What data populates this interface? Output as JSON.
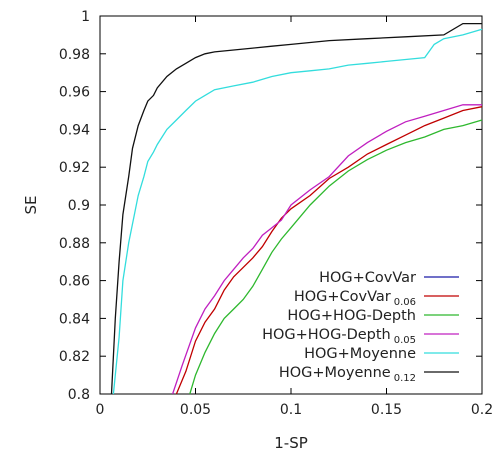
{
  "chart_data": {
    "type": "line",
    "title": "",
    "xlabel": "1-SP",
    "ylabel": "SE",
    "xlim": [
      0,
      0.2
    ],
    "ylim": [
      0.8,
      1.0
    ],
    "grid": false,
    "legend_position": "bottom-right",
    "x_ticks": [
      "0",
      "0.05",
      "0.1",
      "0.15",
      "0.2"
    ],
    "y_ticks": [
      "0.8",
      "0.82",
      "0.84",
      "0.86",
      "0.88",
      "0.9",
      "0.92",
      "0.94",
      "0.96",
      "0.98",
      "1"
    ],
    "series": [
      {
        "name": "HOG+CovVar",
        "subscript": "",
        "color": "#1a1aa8",
        "x": [],
        "y": []
      },
      {
        "name": "HOG+CovVar",
        "subscript": "0.06",
        "color": "#c00000",
        "x": [
          0.04,
          0.045,
          0.05,
          0.055,
          0.06,
          0.065,
          0.07,
          0.075,
          0.08,
          0.085,
          0.09,
          0.095,
          0.1,
          0.11,
          0.12,
          0.13,
          0.14,
          0.15,
          0.16,
          0.17,
          0.18,
          0.19,
          0.2
        ],
        "y": [
          0.8,
          0.812,
          0.828,
          0.838,
          0.845,
          0.855,
          0.862,
          0.867,
          0.872,
          0.878,
          0.886,
          0.893,
          0.898,
          0.905,
          0.914,
          0.92,
          0.927,
          0.932,
          0.937,
          0.942,
          0.946,
          0.95,
          0.952
        ]
      },
      {
        "name": "HOG+HOG-Depth",
        "subscript": "",
        "color": "#2eb82e",
        "x": [
          0.047,
          0.05,
          0.055,
          0.06,
          0.065,
          0.07,
          0.075,
          0.08,
          0.085,
          0.09,
          0.095,
          0.1,
          0.11,
          0.12,
          0.13,
          0.14,
          0.15,
          0.16,
          0.17,
          0.18,
          0.19,
          0.2
        ],
        "y": [
          0.8,
          0.81,
          0.822,
          0.832,
          0.84,
          0.845,
          0.85,
          0.857,
          0.866,
          0.875,
          0.882,
          0.888,
          0.9,
          0.91,
          0.918,
          0.924,
          0.929,
          0.933,
          0.936,
          0.94,
          0.942,
          0.945
        ]
      },
      {
        "name": "HOG+HOG-Depth",
        "subscript": "0.05",
        "color": "#c020c0",
        "x": [
          0.038,
          0.043,
          0.05,
          0.055,
          0.06,
          0.065,
          0.07,
          0.075,
          0.08,
          0.085,
          0.09,
          0.095,
          0.1,
          0.11,
          0.12,
          0.13,
          0.14,
          0.15,
          0.16,
          0.17,
          0.18,
          0.19,
          0.2
        ],
        "y": [
          0.8,
          0.815,
          0.835,
          0.845,
          0.852,
          0.86,
          0.866,
          0.872,
          0.877,
          0.884,
          0.888,
          0.892,
          0.9,
          0.908,
          0.915,
          0.926,
          0.933,
          0.939,
          0.944,
          0.947,
          0.95,
          0.953,
          0.953
        ]
      },
      {
        "name": "HOG+Moyenne",
        "subscript": "",
        "color": "#33dddd",
        "x": [
          0.007,
          0.01,
          0.012,
          0.015,
          0.018,
          0.02,
          0.023,
          0.025,
          0.028,
          0.03,
          0.035,
          0.04,
          0.045,
          0.05,
          0.055,
          0.06,
          0.07,
          0.08,
          0.09,
          0.1,
          0.11,
          0.12,
          0.13,
          0.14,
          0.15,
          0.16,
          0.17,
          0.175,
          0.18,
          0.19,
          0.2
        ],
        "y": [
          0.8,
          0.83,
          0.86,
          0.88,
          0.895,
          0.905,
          0.915,
          0.923,
          0.928,
          0.932,
          0.94,
          0.945,
          0.95,
          0.955,
          0.958,
          0.961,
          0.963,
          0.965,
          0.968,
          0.97,
          0.971,
          0.972,
          0.974,
          0.975,
          0.976,
          0.977,
          0.978,
          0.985,
          0.988,
          0.99,
          0.993
        ]
      },
      {
        "name": "HOG+Moyenne",
        "subscript": "0.12",
        "color": "#111111",
        "x": [
          0.006,
          0.008,
          0.01,
          0.012,
          0.015,
          0.017,
          0.02,
          0.023,
          0.025,
          0.028,
          0.03,
          0.035,
          0.04,
          0.045,
          0.05,
          0.055,
          0.06,
          0.07,
          0.08,
          0.09,
          0.1,
          0.12,
          0.14,
          0.16,
          0.18,
          0.19,
          0.2
        ],
        "y": [
          0.8,
          0.84,
          0.87,
          0.895,
          0.915,
          0.93,
          0.942,
          0.95,
          0.955,
          0.958,
          0.962,
          0.968,
          0.972,
          0.975,
          0.978,
          0.98,
          0.981,
          0.982,
          0.983,
          0.984,
          0.985,
          0.987,
          0.988,
          0.989,
          0.99,
          0.996,
          0.996
        ]
      }
    ]
  }
}
